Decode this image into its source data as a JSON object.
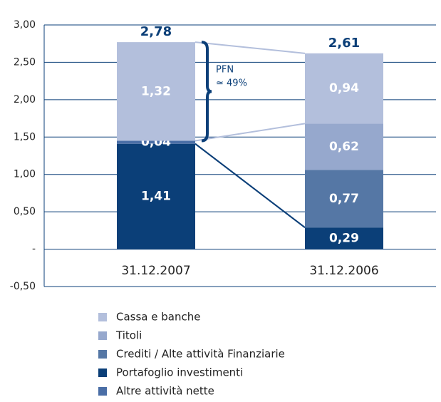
{
  "chart_data": {
    "type": "stacked_bar",
    "categories": [
      "31.12.2007",
      "31.12.2006"
    ],
    "series": [
      {
        "name": "Cassa e banche",
        "color": "#b3bfdc",
        "values": [
          1.32,
          0.94
        ],
        "value_labels": [
          "1,32",
          "0,94"
        ]
      },
      {
        "name": "Titoli",
        "color": "#96a8cd",
        "values": [
          null,
          0.62
        ],
        "value_labels": [
          null,
          "0,62"
        ]
      },
      {
        "name": "Crediti / Alte attività Finanziarie",
        "color": "#5577a5",
        "values": [
          null,
          0.77
        ],
        "value_labels": [
          null,
          "0,77"
        ]
      },
      {
        "name": "Portafoglio investimenti",
        "color": "#0b3f78",
        "values": [
          1.41,
          0.29
        ],
        "value_labels": [
          "1,41",
          "0,29"
        ]
      },
      {
        "name": "Altre attività nette",
        "color": "#4a6ea6",
        "values": [
          0.04,
          null
        ],
        "value_labels": [
          "0,04",
          null
        ]
      }
    ],
    "totals": [
      2.78,
      2.61
    ],
    "totals_labels": [
      "2,78",
      "2,61"
    ],
    "annotation": [
      "PFN",
      "≃ 49%"
    ],
    "ylim": [
      -0.5,
      3.0
    ],
    "yticks": [
      {
        "value": -0.5,
        "label": "-0,50"
      },
      {
        "value": 0,
        "label": "-"
      },
      {
        "value": 0.5,
        "label": "0,50"
      },
      {
        "value": 1,
        "label": "1,00"
      },
      {
        "value": 1.5,
        "label": "1,50"
      },
      {
        "value": 2,
        "label": "2,00"
      },
      {
        "value": 2.5,
        "label": "2,50"
      },
      {
        "value": 3,
        "label": "3,00"
      }
    ],
    "grid": true
  }
}
